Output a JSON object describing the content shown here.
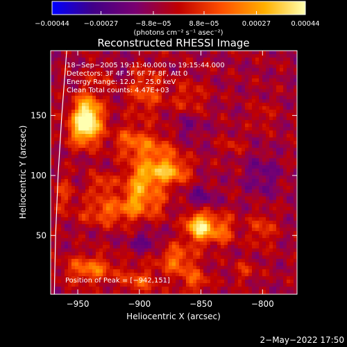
{
  "chart_data": {
    "type": "heatmap",
    "title": "Reconstructed RHESSI Image",
    "xlabel": "Heliocentric X (arcsec)",
    "ylabel": "Heliocentric Y (arcsec)",
    "xlim": [
      -972,
      -772
    ],
    "ylim": [
      1,
      204
    ],
    "x_ticks": [
      -950,
      -900,
      -850,
      -800
    ],
    "x_tick_labels": [
      "−950",
      "−900",
      "−850",
      "−800"
    ],
    "y_ticks": [
      50,
      100,
      150
    ],
    "y_tick_labels": [
      "50",
      "100",
      "150"
    ],
    "colorbar": {
      "range": [
        -0.00044,
        0.00044
      ],
      "ticks": [
        -0.00044,
        -0.00027,
        -8.8e-05,
        8.8e-05,
        0.00027,
        0.00044
      ],
      "tick_labels": [
        "−0.00044",
        "−0.00027",
        "−8.8e−05",
        "8.8e−05",
        "0.00027",
        "0.00044"
      ],
      "units_label": "(photons cm⁻² s⁻¹ asec⁻²)",
      "colors": [
        "#0000ff",
        "#400088",
        "#7a0070",
        "#c00000",
        "#ff5000",
        "#ffb000",
        "#ffffb0"
      ]
    },
    "annotations": {
      "time_range": "18−Sep−2005 19:11:40.000 to 19:15:44.000",
      "detectors": "Detectors: 3F 4F 5F 6F 7F 8F, Att 0",
      "energy_range": "Energy Range: 12.0 − 25.0 keV",
      "clean": "Clean   Total counts: 4.47E+03",
      "peak": "Position of Peak = [−942,151]"
    },
    "peak": {
      "x": -942,
      "y": 151
    },
    "limb": [
      [
        -959,
        204
      ],
      [
        -963,
        150
      ],
      [
        -966,
        100
      ],
      [
        -968,
        50
      ],
      [
        -969,
        1
      ]
    ],
    "blobs": [
      {
        "x": -942,
        "y": 151,
        "sx": 8,
        "sy": 12,
        "amp": 0.00044
      },
      {
        "x": -945,
        "y": 138,
        "sx": 9,
        "sy": 10,
        "amp": 0.0003
      },
      {
        "x": -908,
        "y": 130,
        "sx": 10,
        "sy": 9,
        "amp": 0.00015
      },
      {
        "x": -890,
        "y": 120,
        "sx": 14,
        "sy": 10,
        "amp": 0.00022
      },
      {
        "x": -875,
        "y": 103,
        "sx": 11,
        "sy": 8,
        "amp": 0.0003
      },
      {
        "x": -895,
        "y": 100,
        "sx": 10,
        "sy": 7,
        "amp": 0.00022
      },
      {
        "x": -902,
        "y": 83,
        "sx": 8,
        "sy": 11,
        "amp": 0.0003
      },
      {
        "x": -930,
        "y": 92,
        "sx": 7,
        "sy": 7,
        "amp": 0.00018
      },
      {
        "x": -925,
        "y": 70,
        "sx": 16,
        "sy": 8,
        "amp": 0.00022
      },
      {
        "x": -885,
        "y": 78,
        "sx": 7,
        "sy": 9,
        "amp": 0.00016
      },
      {
        "x": -852,
        "y": 58,
        "sx": 7,
        "sy": 9,
        "amp": 0.00044
      },
      {
        "x": -835,
        "y": 55,
        "sx": 9,
        "sy": 9,
        "amp": 0.00024
      },
      {
        "x": -870,
        "y": 30,
        "sx": 10,
        "sy": 9,
        "amp": 0.00024
      },
      {
        "x": -940,
        "y": 22,
        "sx": 14,
        "sy": 8,
        "amp": 0.00025
      },
      {
        "x": -900,
        "y": 12,
        "sx": 10,
        "sy": 8,
        "amp": 0.00018
      },
      {
        "x": -855,
        "y": 12,
        "sx": 8,
        "sy": 8,
        "amp": 0.00018
      },
      {
        "x": -895,
        "y": 170,
        "sx": 10,
        "sy": 14,
        "amp": 0.00018
      },
      {
        "x": -930,
        "y": 185,
        "sx": 7,
        "sy": 6,
        "amp": 0.00014
      },
      {
        "x": -860,
        "y": 165,
        "sx": 10,
        "sy": 10,
        "amp": 0.00012
      },
      {
        "x": -800,
        "y": 150,
        "sx": 6,
        "sy": 8,
        "amp": 9e-05
      },
      {
        "x": -800,
        "y": 55,
        "sx": 7,
        "sy": 10,
        "amp": 0.00016
      },
      {
        "x": -815,
        "y": 20,
        "sx": 7,
        "sy": 6,
        "amp": 0.00012
      },
      {
        "x": -825,
        "y": 125,
        "sx": 6,
        "sy": 6,
        "amp": 0.0001
      },
      {
        "x": -962,
        "y": 85,
        "sx": 6,
        "sy": 10,
        "amp": 0.00013
      },
      {
        "x": -895,
        "y": 45,
        "sx": 8,
        "sy": 5,
        "amp": -0.00015
      },
      {
        "x": -850,
        "y": 80,
        "sx": 8,
        "sy": 8,
        "amp": -0.00014
      },
      {
        "x": -800,
        "y": 100,
        "sx": 10,
        "sy": 12,
        "amp": -0.00012
      },
      {
        "x": -860,
        "y": 140,
        "sx": 8,
        "sy": 8,
        "amp": -0.0001
      },
      {
        "x": -920,
        "y": 190,
        "sx": 8,
        "sy": 6,
        "amp": -9e-05
      }
    ]
  },
  "footer": {
    "date": "2−May−2022 17:50"
  }
}
